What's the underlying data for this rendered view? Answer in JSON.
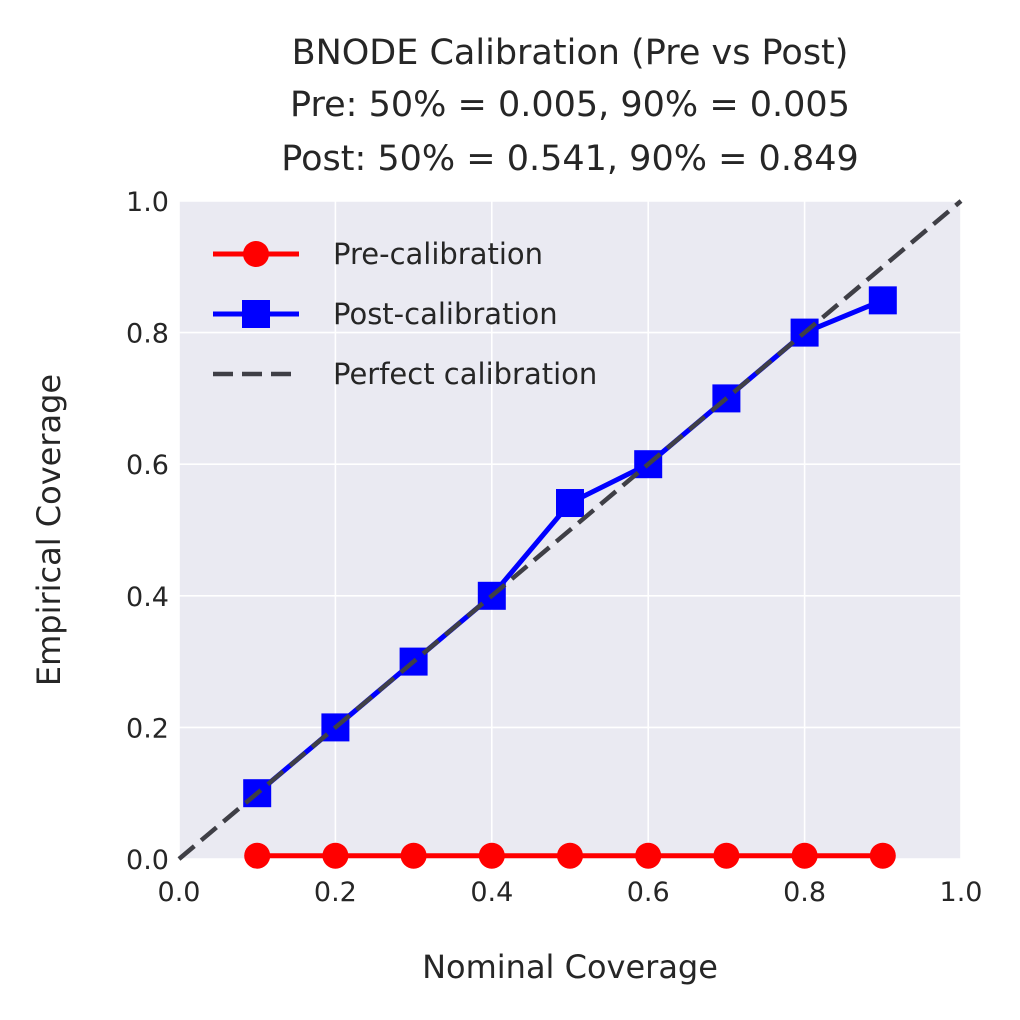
{
  "chart_data": {
    "type": "line",
    "title_lines": [
      "BNODE Calibration (Pre vs Post)",
      "Pre: 50% = 0.005, 90% = 0.005",
      "Post: 50% = 0.541, 90% = 0.849"
    ],
    "xlabel": "Nominal Coverage",
    "ylabel": "Empirical Coverage",
    "xlim": [
      0,
      1
    ],
    "ylim": [
      0,
      1
    ],
    "xticks": [
      "0.0",
      "0.2",
      "0.4",
      "0.6",
      "0.8",
      "1.0"
    ],
    "yticks": [
      "0.0",
      "0.2",
      "0.4",
      "0.6",
      "0.8",
      "1.0"
    ],
    "grid": true,
    "legend_position": "top-left",
    "series": [
      {
        "name": "Pre-calibration",
        "color": "#ff0000",
        "marker": "circle",
        "x": [
          0.1,
          0.2,
          0.3,
          0.4,
          0.5,
          0.6,
          0.7,
          0.8,
          0.9
        ],
        "y": [
          0.005,
          0.005,
          0.005,
          0.005,
          0.005,
          0.005,
          0.005,
          0.005,
          0.005
        ]
      },
      {
        "name": "Post-calibration",
        "color": "#0000ff",
        "marker": "square",
        "x": [
          0.1,
          0.2,
          0.3,
          0.4,
          0.5,
          0.6,
          0.7,
          0.8,
          0.9
        ],
        "y": [
          0.1,
          0.2,
          0.3,
          0.4,
          0.541,
          0.6,
          0.7,
          0.8,
          0.849
        ]
      },
      {
        "name": "Perfect calibration",
        "color": "#3f3f46",
        "style": "dashed",
        "x": [
          0,
          1
        ],
        "y": [
          0,
          1
        ]
      }
    ]
  }
}
